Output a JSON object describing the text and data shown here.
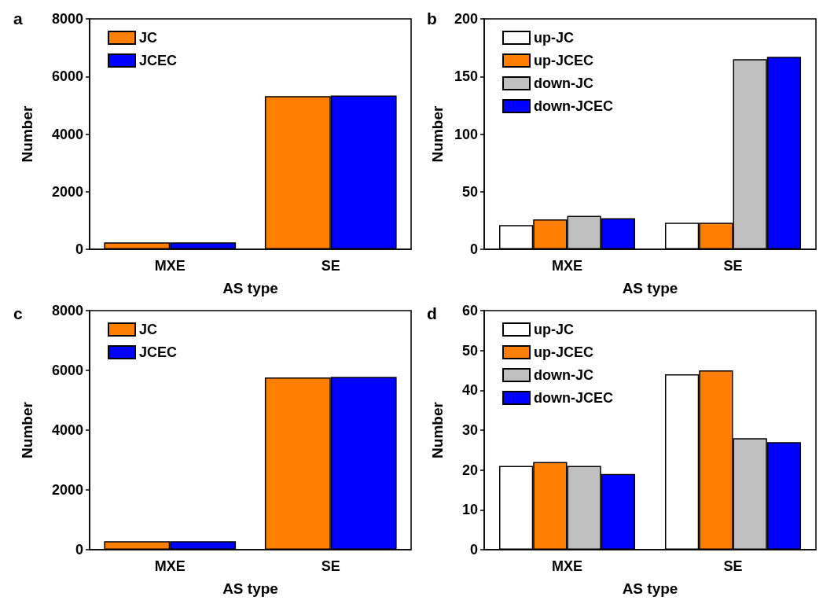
{
  "chart_data": [
    {
      "type": "bar",
      "title": "a",
      "xlabel": "AS type",
      "ylabel": "Number",
      "categories": [
        "MXE",
        "SE"
      ],
      "ylim": [
        0,
        8000
      ],
      "yticks": [
        0,
        2000,
        4000,
        6000,
        8000
      ],
      "legend": "top left",
      "grid": false,
      "series": [
        {
          "name": "JC",
          "color": "#ff7f00",
          "values": [
            240,
            5320
          ]
        },
        {
          "name": "JCEC",
          "color": "#0000ff",
          "values": [
            240,
            5340
          ]
        }
      ]
    },
    {
      "type": "bar",
      "title": "b",
      "xlabel": "AS type",
      "ylabel": "Number",
      "categories": [
        "MXE",
        "SE"
      ],
      "ylim": [
        0,
        200
      ],
      "yticks": [
        0,
        50,
        100,
        150,
        200
      ],
      "legend": "top left",
      "grid": false,
      "series": [
        {
          "name": "up-JC",
          "color": "#ffffff",
          "values": [
            21,
            23
          ]
        },
        {
          "name": "up-JCEC",
          "color": "#ff7f00",
          "values": [
            26,
            23
          ]
        },
        {
          "name": "down-JC",
          "color": "#c0c0c0",
          "values": [
            29,
            165
          ]
        },
        {
          "name": "down-JCEC",
          "color": "#0000ff",
          "values": [
            27,
            167
          ]
        }
      ]
    },
    {
      "type": "bar",
      "title": "c",
      "xlabel": "AS type",
      "ylabel": "Number",
      "categories": [
        "MXE",
        "SE"
      ],
      "ylim": [
        0,
        8000
      ],
      "yticks": [
        0,
        2000,
        4000,
        6000,
        8000
      ],
      "legend": "top left",
      "grid": false,
      "series": [
        {
          "name": "JC",
          "color": "#ff7f00",
          "values": [
            280,
            5760
          ]
        },
        {
          "name": "JCEC",
          "color": "#0000ff",
          "values": [
            280,
            5780
          ]
        }
      ]
    },
    {
      "type": "bar",
      "title": "d",
      "xlabel": "AS type",
      "ylabel": "Number",
      "categories": [
        "MXE",
        "SE"
      ],
      "ylim": [
        0,
        60
      ],
      "yticks": [
        0,
        10,
        20,
        30,
        40,
        50,
        60
      ],
      "legend": "top left",
      "grid": false,
      "series": [
        {
          "name": "up-JC",
          "color": "#ffffff",
          "values": [
            21,
            44
          ]
        },
        {
          "name": "up-JCEC",
          "color": "#ff7f00",
          "values": [
            22,
            45
          ]
        },
        {
          "name": "down-JC",
          "color": "#c0c0c0",
          "values": [
            21,
            28
          ]
        },
        {
          "name": "down-JCEC",
          "color": "#0000ff",
          "values": [
            19,
            27
          ]
        }
      ]
    }
  ]
}
